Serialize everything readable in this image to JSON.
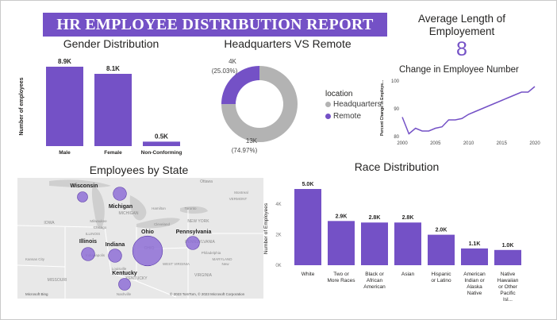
{
  "report": {
    "title": "HR EMPLOYEE DISTRIBUTION REPORT"
  },
  "colors": {
    "accent": "#7451c6",
    "headquarters": "#b3b3b3",
    "remote": "#7451c6",
    "map_bubble": "#8e6fd6"
  },
  "kpi": {
    "label": "Average Length of Employement",
    "value": "8"
  },
  "gender": {
    "title": "Gender Distribution",
    "chart_data": {
      "type": "bar",
      "categories": [
        "Male",
        "Female",
        "Non-Conforming"
      ],
      "values": [
        8.9,
        8.1,
        0.5
      ],
      "data_labels": [
        "8.9K",
        "8.1K",
        "0.5K"
      ],
      "ylabel": "Number of employees",
      "ylim": [
        0,
        8.9
      ]
    }
  },
  "location": {
    "title": "Headquarters VS Remote",
    "legend_title": "location",
    "chart_data": {
      "type": "pie",
      "slices": [
        {
          "name": "Headquarters",
          "value": 74.97,
          "count_label": "13K",
          "pct_label": "(74.97%)"
        },
        {
          "name": "Remote",
          "value": 25.03,
          "count_label": "4K",
          "pct_label": "(25.03%)"
        }
      ]
    }
  },
  "change": {
    "title": "Change in Employee Number",
    "chart_data": {
      "type": "line",
      "x": [
        2000,
        2001,
        2002,
        2003,
        2004,
        2005,
        2006,
        2007,
        2008,
        2009,
        2010,
        2011,
        2012,
        2013,
        2014,
        2015,
        2016,
        2017,
        2018,
        2019,
        2020
      ],
      "y": [
        87,
        81,
        83,
        82,
        82,
        83,
        83.5,
        86,
        86,
        86.5,
        88,
        89,
        90,
        91,
        92,
        93,
        94,
        95,
        96,
        96,
        98
      ],
      "xticks": [
        "2000",
        "2005",
        "2010",
        "2015",
        "2020"
      ],
      "yticks": [
        "100",
        "90",
        "80"
      ],
      "ylabel": "Percent Change in Employe...",
      "xlim": [
        2000,
        2020
      ],
      "ylim": [
        80,
        100
      ]
    }
  },
  "state_map": {
    "title": "Employees by State",
    "states": [
      {
        "name": "Wisconsin",
        "value": 1
      },
      {
        "name": "Michigan",
        "value": 2
      },
      {
        "name": "Illinois",
        "value": 2
      },
      {
        "name": "Indiana",
        "value": 2
      },
      {
        "name": "Ohio",
        "value": 14
      },
      {
        "name": "Pennsylvania",
        "value": 2
      },
      {
        "name": "Kentucky",
        "value": 1.5
      }
    ],
    "map_labels": [
      "IOWA",
      "ILLINOIS",
      "Milwaukee",
      "Chicago",
      "MICHIGAN",
      "Hamilton",
      "Toronto",
      "Ottawa",
      "Montreal",
      "VERMONT",
      "NEW YORK",
      "Cleveland",
      "OHIO",
      "PENNSYLVANIA",
      "Philadelphia",
      "Indianapolis",
      "MISSOURI",
      "Kansas City",
      "Louisville",
      "KENTUCKY",
      "WEST VIRGINIA",
      "VIRGINIA",
      "Nashville",
      "New",
      "MARYLAND"
    ],
    "attribution": "© 2023 TomTom, © 2023 Microsoft Corporation",
    "provider": "Microsoft Bing"
  },
  "race": {
    "title": "Race Distribution",
    "chart_data": {
      "type": "bar",
      "categories": [
        "White",
        "Two or More Races",
        "Black or African American",
        "Asian",
        "Hispanic or Latino",
        "American Indian or Alaska Native",
        "Native Hawaiian or Other Pacific Isl..."
      ],
      "values": [
        5.0,
        2.9,
        2.8,
        2.8,
        2.0,
        1.1,
        1.0
      ],
      "data_labels": [
        "5.0K",
        "2.9K",
        "2.8K",
        "2.8K",
        "2.0K",
        "1.1K",
        "1.0K"
      ],
      "ylabel": "Number of Employees",
      "yticks": [
        "4K",
        "2K",
        "0K"
      ],
      "ylim": [
        0,
        5.0
      ]
    }
  }
}
